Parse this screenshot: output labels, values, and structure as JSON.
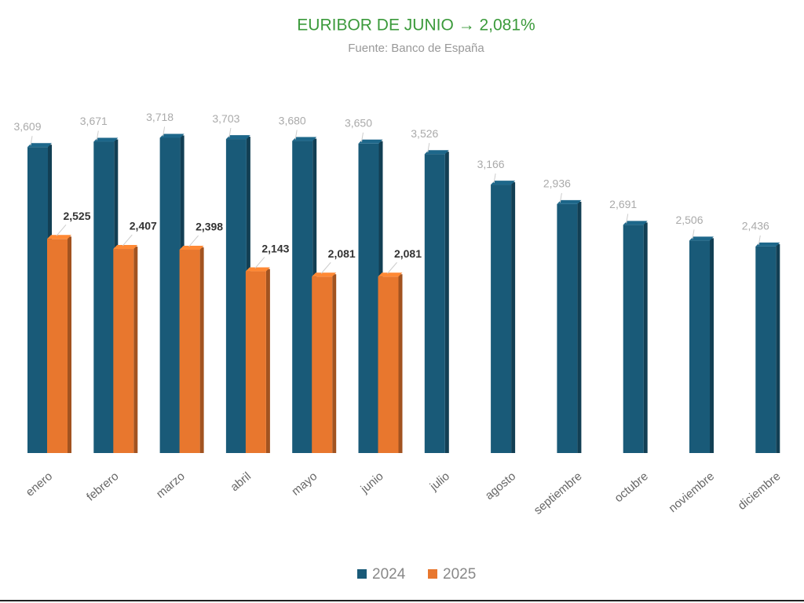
{
  "chart_data": {
    "type": "bar",
    "title": "EURIBOR DE JUNIO → 2,081%",
    "subtitle": "Fuente: Banco de España",
    "categories": [
      "enero",
      "febrero",
      "marzo",
      "abril",
      "mayo",
      "junio",
      "julio",
      "agosto",
      "septiembre",
      "octubre",
      "noviembre",
      "diciembre"
    ],
    "series": [
      {
        "name": "2024",
        "color": "#195a78",
        "values": [
          3.609,
          3.671,
          3.718,
          3.703,
          3.68,
          3.65,
          3.526,
          3.166,
          2.936,
          2.691,
          2.506,
          2.436
        ],
        "value_labels": [
          "3,609",
          "3,671",
          "3,718",
          "3,703",
          "3,680",
          "3,650",
          "3,526",
          "3,166",
          "2,936",
          "2,691",
          "2,506",
          "2,436"
        ]
      },
      {
        "name": "2025",
        "color": "#e8772e",
        "values": [
          2.525,
          2.407,
          2.398,
          2.143,
          2.081,
          2.081,
          null,
          null,
          null,
          null,
          null,
          null
        ],
        "value_labels": [
          "2,525",
          "2,407",
          "2,398",
          "2,143",
          "2,081",
          "2,081",
          null,
          null,
          null,
          null,
          null,
          null
        ]
      }
    ],
    "legend": "bottom"
  }
}
